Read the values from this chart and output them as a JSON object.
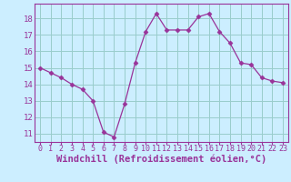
{
  "x": [
    0,
    1,
    2,
    3,
    4,
    5,
    6,
    7,
    8,
    9,
    10,
    11,
    12,
    13,
    14,
    15,
    16,
    17,
    18,
    19,
    20,
    21,
    22,
    23
  ],
  "y": [
    15.0,
    14.7,
    14.4,
    14.0,
    13.7,
    13.0,
    11.1,
    10.8,
    12.8,
    15.3,
    17.2,
    18.3,
    17.3,
    17.3,
    17.3,
    18.1,
    18.3,
    17.2,
    16.5,
    15.3,
    15.2,
    14.4,
    14.2,
    14.1
  ],
  "line_color": "#993399",
  "marker": "D",
  "marker_size": 2.5,
  "bg_color": "#cceeff",
  "grid_color": "#99cccc",
  "axis_color": "#993399",
  "xlabel": "Windchill (Refroidissement éolien,°C)",
  "xlabel_fontsize": 7.5,
  "ylabel_ticks": [
    11,
    12,
    13,
    14,
    15,
    16,
    17,
    18
  ],
  "xtick_labels": [
    "0",
    "1",
    "2",
    "3",
    "4",
    "5",
    "6",
    "7",
    "8",
    "9",
    "10",
    "11",
    "12",
    "13",
    "14",
    "15",
    "16",
    "17",
    "18",
    "19",
    "20",
    "21",
    "22",
    "23"
  ],
  "ylim": [
    10.5,
    18.9
  ],
  "xlim": [
    -0.5,
    23.5
  ],
  "tick_fontsize": 6.5
}
